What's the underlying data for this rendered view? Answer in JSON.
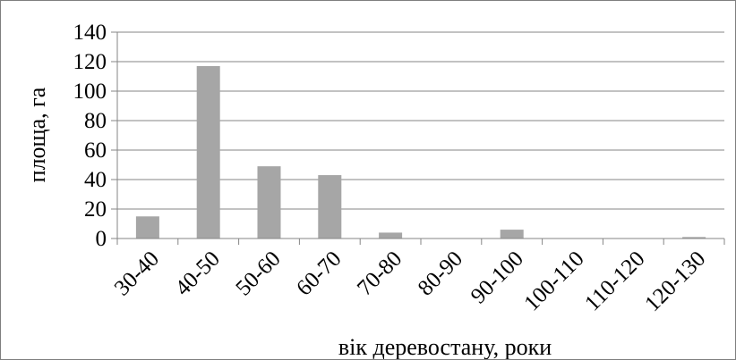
{
  "chart_data": {
    "type": "bar",
    "xlabel": "вік деревостану, роки",
    "ylabel": "площа, га",
    "categories": [
      "30-40",
      "40-50",
      "50-60",
      "60-70",
      "70-80",
      "80-90",
      "90-100",
      "100-110",
      "110-120",
      "120-130"
    ],
    "values": [
      15,
      117,
      49,
      43,
      4,
      0,
      6,
      0,
      0,
      1
    ],
    "yticks": [
      "0",
      "20",
      "40",
      "60",
      "80",
      "100",
      "120",
      "140"
    ],
    "ylim": [
      0,
      140
    ],
    "grid": true,
    "legend": "none",
    "colors": {
      "bar": "#a6a6a6",
      "grid": "#868686",
      "axis": "#868686",
      "frame": "#7f7f7f"
    }
  }
}
